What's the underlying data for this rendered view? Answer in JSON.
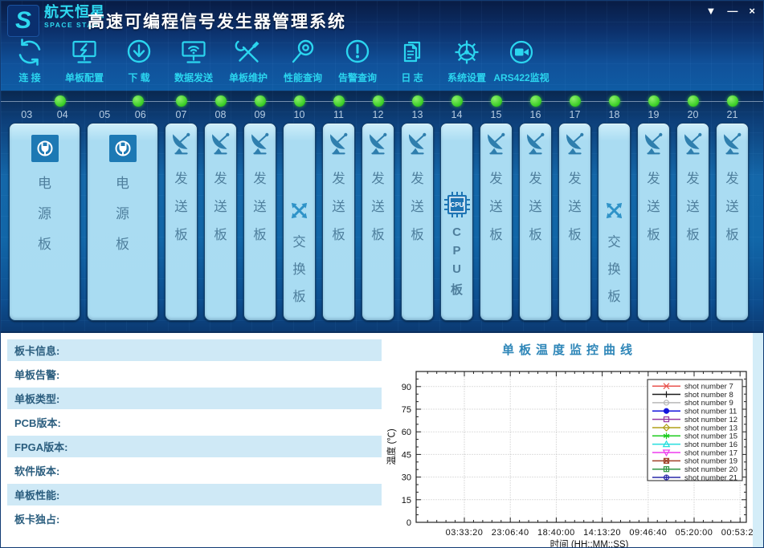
{
  "window": {
    "logo": {
      "monogram": "S",
      "brand": "航天恒星",
      "sub_brand": "SPACE STAR"
    },
    "title": "高速可编程信号发生器管理系统",
    "controls": [
      {
        "id": "theme-button",
        "glyph": "▼"
      },
      {
        "id": "minimize-button",
        "glyph": "—"
      },
      {
        "id": "close-button",
        "glyph": "×"
      }
    ]
  },
  "toolbar": {
    "items": [
      {
        "id": "connect",
        "label": "连 接",
        "icon": "refresh-icon"
      },
      {
        "id": "board-config",
        "label": "单板配置",
        "icon": "monitor-lightning-icon"
      },
      {
        "id": "download",
        "label": "下 载",
        "icon": "download-circle-icon"
      },
      {
        "id": "data-send",
        "label": "数据发送",
        "icon": "monitor-wifi-icon"
      },
      {
        "id": "board-maintain",
        "label": "单板维护",
        "icon": "tools-icon"
      },
      {
        "id": "performance-query",
        "label": "性能查询",
        "icon": "magnifier-icon"
      },
      {
        "id": "alarm-query",
        "label": "告警查询",
        "icon": "alert-circle-icon"
      },
      {
        "id": "log",
        "label": "日 志",
        "icon": "document-icon"
      },
      {
        "id": "system-settings",
        "label": "系统设置",
        "icon": "gear-icon"
      },
      {
        "id": "ars422-monitor",
        "label": "ARS422监视",
        "icon": "camera-icon"
      }
    ]
  },
  "slots": {
    "cards": [
      {
        "numbers": [
          "03",
          "04"
        ],
        "wide": true,
        "type": "power",
        "label": "电源板",
        "label_chars": [
          "电",
          "源",
          "板"
        ],
        "icon": "power-plug-icon",
        "led": "green"
      },
      {
        "numbers": [
          "05",
          "06"
        ],
        "wide": true,
        "type": "power",
        "label": "电源板",
        "label_chars": [
          "电",
          "源",
          "板"
        ],
        "icon": "power-plug-icon",
        "led": "green"
      },
      {
        "numbers": [
          "07"
        ],
        "wide": false,
        "type": "send",
        "label": "发送板",
        "label_chars": [
          "发",
          "送",
          "板"
        ],
        "icon": "satellite-dish-icon",
        "led": "green"
      },
      {
        "numbers": [
          "08"
        ],
        "wide": false,
        "type": "send",
        "label": "发送板",
        "label_chars": [
          "发",
          "送",
          "板"
        ],
        "icon": "satellite-dish-icon",
        "led": "green"
      },
      {
        "numbers": [
          "09"
        ],
        "wide": false,
        "type": "send",
        "label": "发送板",
        "label_chars": [
          "发",
          "送",
          "板"
        ],
        "icon": "satellite-dish-icon",
        "led": "green"
      },
      {
        "numbers": [
          "10"
        ],
        "wide": false,
        "type": "switch",
        "label": "交换板",
        "label_chars": [
          "交",
          "换",
          "板"
        ],
        "icon": "crossed-arrows-icon",
        "led": "green"
      },
      {
        "numbers": [
          "11"
        ],
        "wide": false,
        "type": "send",
        "label": "发送板",
        "label_chars": [
          "发",
          "送",
          "板"
        ],
        "icon": "satellite-dish-icon",
        "led": "green"
      },
      {
        "numbers": [
          "12"
        ],
        "wide": false,
        "type": "send",
        "label": "发送板",
        "label_chars": [
          "发",
          "送",
          "板"
        ],
        "icon": "satellite-dish-icon",
        "led": "green"
      },
      {
        "numbers": [
          "13"
        ],
        "wide": false,
        "type": "send",
        "label": "发送板",
        "label_chars": [
          "发",
          "送",
          "板"
        ],
        "icon": "satellite-dish-icon",
        "led": "green"
      },
      {
        "numbers": [
          "14"
        ],
        "wide": false,
        "type": "cpu",
        "label": "CPU板",
        "label_chars": [
          "C",
          "P",
          "U",
          "板"
        ],
        "icon": "cpu-chip-icon",
        "led": "green"
      },
      {
        "numbers": [
          "15"
        ],
        "wide": false,
        "type": "send",
        "label": "发送板",
        "label_chars": [
          "发",
          "送",
          "板"
        ],
        "icon": "satellite-dish-icon",
        "led": "green"
      },
      {
        "numbers": [
          "16"
        ],
        "wide": false,
        "type": "send",
        "label": "发送板",
        "label_chars": [
          "发",
          "送",
          "板"
        ],
        "icon": "satellite-dish-icon",
        "led": "green"
      },
      {
        "numbers": [
          "17"
        ],
        "wide": false,
        "type": "send",
        "label": "发送板",
        "label_chars": [
          "发",
          "送",
          "板"
        ],
        "icon": "satellite-dish-icon",
        "led": "green"
      },
      {
        "numbers": [
          "18"
        ],
        "wide": false,
        "type": "switch",
        "label": "交换板",
        "label_chars": [
          "交",
          "换",
          "板"
        ],
        "icon": "crossed-arrows-icon",
        "led": "green"
      },
      {
        "numbers": [
          "19"
        ],
        "wide": false,
        "type": "send",
        "label": "发送板",
        "label_chars": [
          "发",
          "送",
          "板"
        ],
        "icon": "satellite-dish-icon",
        "led": "green"
      },
      {
        "numbers": [
          "20"
        ],
        "wide": false,
        "type": "send",
        "label": "发送板",
        "label_chars": [
          "发",
          "送",
          "板"
        ],
        "icon": "satellite-dish-icon",
        "led": "green"
      },
      {
        "numbers": [
          "21"
        ],
        "wide": false,
        "type": "send",
        "label": "发送板",
        "label_chars": [
          "发",
          "送",
          "板"
        ],
        "icon": "satellite-dish-icon",
        "led": "green"
      }
    ],
    "led_color": "#3ccf28"
  },
  "info_panel": {
    "fields": [
      "板卡信息:",
      "单板告警:",
      "单板类型:",
      "PCB版本:",
      "FPGA版本:",
      "软件版本:",
      "单板性能:",
      "板卡独占:"
    ]
  },
  "chart_data": {
    "type": "line",
    "title": "单板温度监控曲线",
    "xlabel": "时间 (HH::MM::SS)",
    "ylabel": "温度 (℃)",
    "ylim": [
      0,
      100
    ],
    "y_ticks": [
      0,
      15,
      30,
      45,
      60,
      75,
      90
    ],
    "x_tick_labels": [
      "03:33:20",
      "23:06:40",
      "18:40:00",
      "14:13:20",
      "09:46:40",
      "05:20:00",
      "00:53:20"
    ],
    "grid": true,
    "legend_position": "top-right",
    "series": [
      {
        "name": "shot number 7",
        "color": "#e8544f",
        "marker": "cross",
        "points": []
      },
      {
        "name": "shot number 8",
        "color": "#1a1a1a",
        "marker": "plus",
        "points": []
      },
      {
        "name": "shot number 9",
        "color": "#b8b8b8",
        "marker": "circle-open",
        "points": []
      },
      {
        "name": "shot number 11",
        "color": "#1414dc",
        "marker": "circle-filled",
        "points": []
      },
      {
        "name": "shot number 12",
        "color": "#9637a0",
        "marker": "square-open",
        "points": []
      },
      {
        "name": "shot number 13",
        "color": "#b0a018",
        "marker": "diamond-open",
        "points": []
      },
      {
        "name": "shot number 15",
        "color": "#1ecc1e",
        "marker": "asterisk",
        "points": []
      },
      {
        "name": "shot number 16",
        "color": "#24dede",
        "marker": "triangle-up-open",
        "points": []
      },
      {
        "name": "shot number 17",
        "color": "#ee3cee",
        "marker": "triangle-down-open",
        "points": []
      },
      {
        "name": "shot number 19",
        "color": "#a04028",
        "marker": "square-cross",
        "points": []
      },
      {
        "name": "shot number 20",
        "color": "#2e9440",
        "marker": "square-plus",
        "points": []
      },
      {
        "name": "shot number 21",
        "color": "#2828a8",
        "marker": "circle-plus",
        "points": []
      }
    ]
  }
}
